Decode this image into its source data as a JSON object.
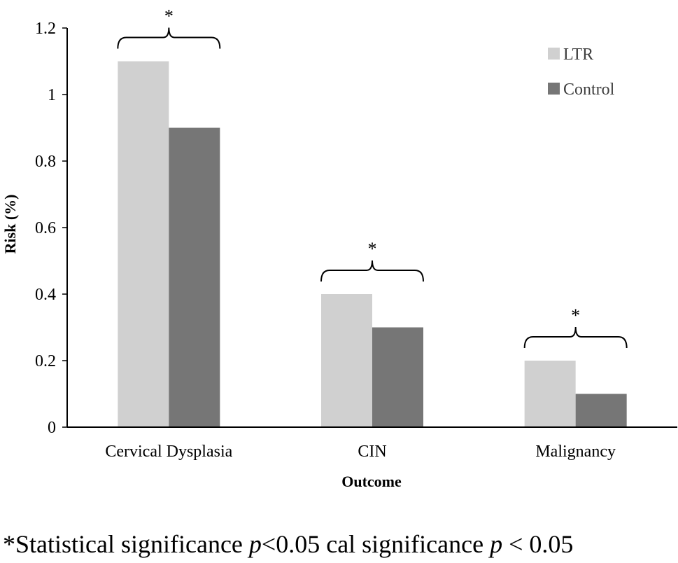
{
  "chart_data": {
    "type": "bar",
    "categories": [
      "Cervical Dysplasia",
      "CIN",
      "Malignancy"
    ],
    "series": [
      {
        "name": "LTR",
        "values": [
          1.1,
          0.4,
          0.2
        ],
        "color": "#d0d0d0"
      },
      {
        "name": "Control",
        "values": [
          0.9,
          0.3,
          0.1
        ],
        "color": "#767676"
      }
    ],
    "xlabel": "Outcome",
    "ylabel": "Risk (%)",
    "ylim": [
      0,
      1.2
    ],
    "yticks": [
      0,
      0.2,
      0.4,
      0.6,
      0.8,
      1,
      1.2
    ],
    "ytick_labels": [
      "0",
      "0.2",
      "0.4",
      "0.6",
      "0.8",
      "1",
      "1.2"
    ],
    "grid": false,
    "legend_position": "top-right",
    "significance_marker": "*",
    "significant_categories": [
      "Cervical Dysplasia",
      "CIN",
      "Malignancy"
    ]
  },
  "footnote": {
    "part1": "*Statistical significance ",
    "p1": "p",
    "part2": "<0.05 cal significance ",
    "p2": "p",
    "part3": " < 0.05"
  }
}
